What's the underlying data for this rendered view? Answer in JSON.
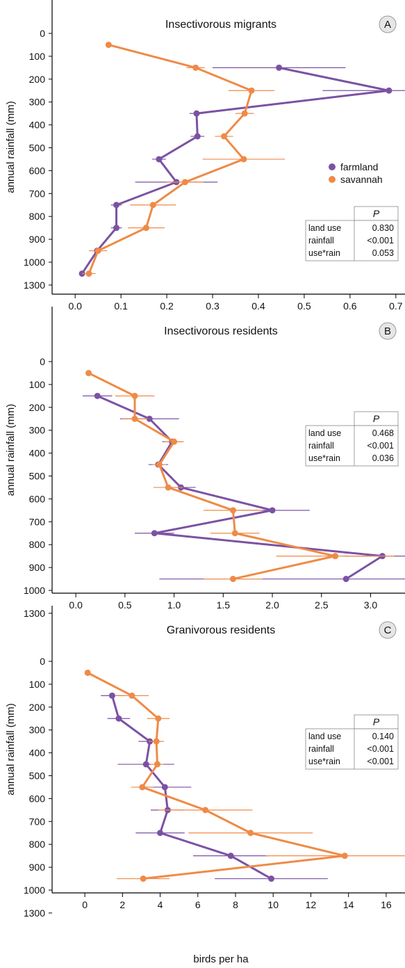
{
  "xlabel_shared": "birds per ha",
  "legend": {
    "items": [
      "farmland",
      "savannah"
    ]
  },
  "colors": {
    "farmland": "#7b52a3",
    "savannah": "#ef8a47",
    "axis": "#000000",
    "table_border": "#888888"
  },
  "ylabel": "annual rainfall (mm)",
  "yticks": [
    "0",
    "100",
    "200",
    "300",
    "400",
    "500",
    "600",
    "700",
    "800",
    "900",
    "1000",
    "1300"
  ],
  "chart_data": [
    {
      "type": "line",
      "panel": "A",
      "title": "Insectivorous migrants",
      "xlabel": "",
      "ylabel": "annual rainfall (mm)",
      "xlim": [
        -0.02,
        0.72
      ],
      "xticks": [
        "0.0",
        "0.1",
        "0.2",
        "0.3",
        "0.4",
        "0.5",
        "0.6",
        "0.7"
      ],
      "y_categories": [
        "0",
        "100",
        "200",
        "300",
        "400",
        "500",
        "600",
        "700",
        "800",
        "900",
        "1000",
        "1300"
      ],
      "series": [
        {
          "name": "farmland",
          "color": "#7b52a3",
          "points": [
            {
              "y": 150,
              "x": 0.445,
              "err": 0.145
            },
            {
              "y": 250,
              "x": 0.685,
              "err": 0.145
            },
            {
              "y": 350,
              "x": 0.265,
              "err": 0.015
            },
            {
              "y": 450,
              "x": 0.267,
              "err": 0.015
            },
            {
              "y": 550,
              "x": 0.183,
              "err": 0.015
            },
            {
              "y": 650,
              "x": 0.221,
              "err": 0.09
            },
            {
              "y": 750,
              "x": 0.09,
              "err": 0.012
            },
            {
              "y": 850,
              "x": 0.09,
              "err": 0.012
            },
            {
              "y": 950,
              "x": 0.048,
              "err": 0.012
            },
            {
              "y": 1050,
              "x": 0.015,
              "err": 0.005
            }
          ]
        },
        {
          "name": "savannah",
          "color": "#ef8a47",
          "points": [
            {
              "y": 50,
              "x": 0.073,
              "err": 0
            },
            {
              "y": 150,
              "x": 0.263,
              "err": 0.02
            },
            {
              "y": 250,
              "x": 0.385,
              "err": 0.05
            },
            {
              "y": 350,
              "x": 0.37,
              "err": 0.02
            },
            {
              "y": 450,
              "x": 0.325,
              "err": 0.02
            },
            {
              "y": 550,
              "x": 0.368,
              "err": 0.09
            },
            {
              "y": 650,
              "x": 0.24,
              "err": 0.04
            },
            {
              "y": 750,
              "x": 0.17,
              "err": 0.05
            },
            {
              "y": 850,
              "x": 0.155,
              "err": 0.04
            },
            {
              "y": 950,
              "x": 0.05,
              "err": 0.02
            },
            {
              "y": 1050,
              "x": 0.03,
              "err": 0.015
            }
          ]
        }
      ],
      "stats_table": {
        "header": "P",
        "rows": [
          [
            "land use",
            "0.830"
          ],
          [
            "rainfall",
            "<0.001"
          ],
          [
            "use*rain",
            "0.053"
          ]
        ]
      }
    },
    {
      "type": "line",
      "panel": "B",
      "title": "Insectivorous residents",
      "xlabel": "",
      "ylabel": "annual rainfall (mm)",
      "xlim": [
        -0.1,
        3.35
      ],
      "xticks": [
        "0.0",
        "0.5",
        "1.0",
        "1.5",
        "2.0",
        "2.5",
        "3.0"
      ],
      "y_categories": [
        "0",
        "100",
        "200",
        "300",
        "400",
        "500",
        "600",
        "700",
        "800",
        "900",
        "1000",
        "1300"
      ],
      "series": [
        {
          "name": "farmland",
          "color": "#7b52a3",
          "points": [
            {
              "y": 150,
              "x": 0.22,
              "err": 0.15
            },
            {
              "y": 250,
              "x": 0.75,
              "err": 0.3
            },
            {
              "y": 350,
              "x": 0.98,
              "err": 0.1
            },
            {
              "y": 450,
              "x": 0.84,
              "err": 0.1
            },
            {
              "y": 550,
              "x": 1.07,
              "err": 0.15
            },
            {
              "y": 650,
              "x": 2.0,
              "err": 0.38
            },
            {
              "y": 750,
              "x": 0.8,
              "err": 0.2
            },
            {
              "y": 850,
              "x": 3.12,
              "err": 0.4
            },
            {
              "y": 950,
              "x": 2.75,
              "err": 1.9
            }
          ]
        },
        {
          "name": "savannah",
          "color": "#ef8a47",
          "points": [
            {
              "y": 50,
              "x": 0.13,
              "err": 0
            },
            {
              "y": 150,
              "x": 0.6,
              "err": 0.2
            },
            {
              "y": 250,
              "x": 0.6,
              "err": 0.13
            },
            {
              "y": 350,
              "x": 1.0,
              "err": 0.1
            },
            {
              "y": 450,
              "x": 0.85,
              "err": 0.07
            },
            {
              "y": 550,
              "x": 0.94,
              "err": 0.15
            },
            {
              "y": 650,
              "x": 1.6,
              "err": 0.3
            },
            {
              "y": 750,
              "x": 1.62,
              "err": 0.25
            },
            {
              "y": 850,
              "x": 2.64,
              "err": 0.6
            },
            {
              "y": 950,
              "x": 1.6,
              "err": 0.3
            }
          ]
        }
      ],
      "stats_table": {
        "header": "P",
        "rows": [
          [
            "land use",
            "0.468"
          ],
          [
            "rainfall",
            "<0.001"
          ],
          [
            "use*rain",
            "0.036"
          ]
        ]
      }
    },
    {
      "type": "line",
      "panel": "C",
      "title": "Granivorous residents",
      "xlabel": "birds per ha",
      "ylabel": "annual rainfall (mm)",
      "xlim": [
        -1.0,
        17.0
      ],
      "xticks": [
        "0",
        "2",
        "4",
        "6",
        "8",
        "10",
        "12",
        "14",
        "16"
      ],
      "y_categories": [
        "0",
        "100",
        "200",
        "300",
        "400",
        "500",
        "600",
        "700",
        "800",
        "900",
        "1000",
        "1300"
      ],
      "series": [
        {
          "name": "farmland",
          "color": "#7b52a3",
          "points": [
            {
              "y": 150,
              "x": 1.45,
              "err": 0.6
            },
            {
              "y": 250,
              "x": 1.8,
              "err": 0.6
            },
            {
              "y": 350,
              "x": 3.45,
              "err": 0.6
            },
            {
              "y": 450,
              "x": 3.25,
              "err": 1.5
            },
            {
              "y": 550,
              "x": 4.25,
              "err": 1.4
            },
            {
              "y": 650,
              "x": 4.4,
              "err": 0.9
            },
            {
              "y": 750,
              "x": 4.0,
              "err": 1.3
            },
            {
              "y": 850,
              "x": 7.75,
              "err": 2.0
            },
            {
              "y": 950,
              "x": 9.9,
              "err": 3.0
            }
          ]
        },
        {
          "name": "savannah",
          "color": "#ef8a47",
          "points": [
            {
              "y": 50,
              "x": 0.15,
              "err": 0
            },
            {
              "y": 150,
              "x": 2.5,
              "err": 0.9
            },
            {
              "y": 250,
              "x": 3.9,
              "err": 0.6
            },
            {
              "y": 350,
              "x": 3.8,
              "err": 0.4
            },
            {
              "y": 450,
              "x": 3.85,
              "err": 0.35
            },
            {
              "y": 550,
              "x": 3.05,
              "err": 0.6
            },
            {
              "y": 650,
              "x": 6.4,
              "err": 2.5
            },
            {
              "y": 750,
              "x": 8.8,
              "err": 3.3
            },
            {
              "y": 850,
              "x": 13.8,
              "err": 4.2
            },
            {
              "y": 950,
              "x": 3.1,
              "err": 1.4
            }
          ]
        }
      ],
      "stats_table": {
        "header": "P",
        "rows": [
          [
            "land use",
            "0.140"
          ],
          [
            "rainfall",
            "<0.001"
          ],
          [
            "use*rain",
            "<0.001"
          ]
        ]
      }
    }
  ]
}
